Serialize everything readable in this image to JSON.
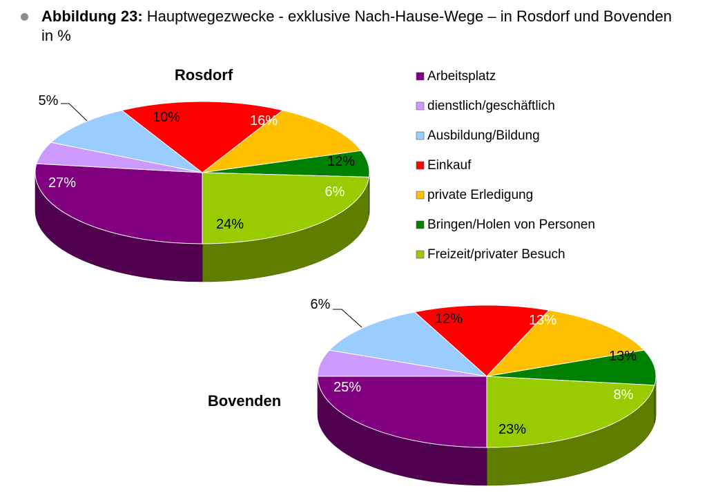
{
  "figure": {
    "label": "Abbildung 23:",
    "title": "Hauptwegezwecke - exklusive Nach-Hause-Wege – in Rosdorf und Bovenden in %"
  },
  "chart_data": [
    {
      "type": "pie",
      "title": "Rosdorf",
      "unit": "%",
      "categories": [
        "Arbeitsplatz",
        "dienstlich/geschäftlich",
        "Ausbildung/Bildung",
        "Einkauf",
        "private Erledigung",
        "Bringen/Holen von Personen",
        "Freizeit/privater Besuch"
      ],
      "values": [
        27,
        5,
        10,
        16,
        12,
        6,
        24
      ],
      "labels": [
        "27%",
        "5%",
        "10%",
        "16%",
        "12%",
        "6%",
        "24%"
      ],
      "legend": "right"
    },
    {
      "type": "pie",
      "title": "Bovenden",
      "unit": "%",
      "categories": [
        "Arbeitsplatz",
        "dienstlich/geschäftlich",
        "Ausbildung/Bildung",
        "Einkauf",
        "private Erledigung",
        "Bringen/Holen von Personen",
        "Freizeit/privater Besuch"
      ],
      "values": [
        25,
        6,
        12,
        13,
        13,
        8,
        23
      ],
      "labels": [
        "25%",
        "6%",
        "12%",
        "13%",
        "13%",
        "8%",
        "23%"
      ],
      "legend": "none"
    }
  ],
  "colors": [
    "#800080",
    "#cc99ff",
    "#99ccff",
    "#ff0000",
    "#ffc000",
    "#008000",
    "#99cc00"
  ],
  "label_colors": [
    "#ffffff",
    "#000000",
    "#000000",
    "#ffffff",
    "#000000",
    "#ffffff",
    "#000000"
  ]
}
